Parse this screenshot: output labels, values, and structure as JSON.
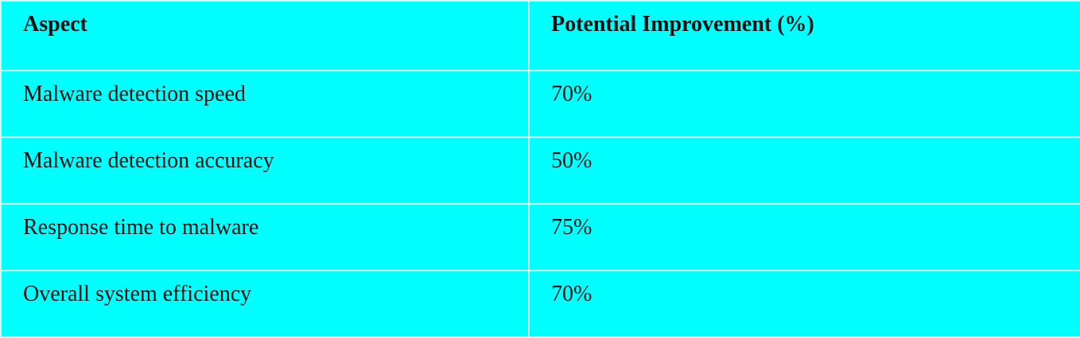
{
  "table": {
    "headers": [
      "Aspect",
      "Potential Improvement (%)"
    ],
    "rows": [
      [
        "Malware detection speed",
        "70%"
      ],
      [
        "Malware detection accuracy",
        "50%"
      ],
      [
        "Response time to malware",
        "75%"
      ],
      [
        "Overall system efficiency",
        "70%"
      ]
    ]
  },
  "colors": {
    "cell_background": "#00ffff",
    "grid_line": "#d9f2ee",
    "text": "#111111"
  }
}
